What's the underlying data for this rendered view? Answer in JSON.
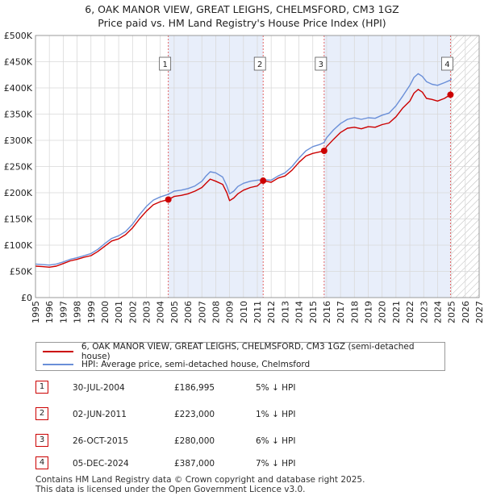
{
  "title_line1": "6, OAK MANOR VIEW, GREAT LEIGHS, CHELMSFORD, CM3 1GZ",
  "title_line2": "Price paid vs. HM Land Registry's House Price Index (HPI)",
  "colors": {
    "price": "#cc0000",
    "hpi": "#6a8fd8",
    "shade": "#e8eefa",
    "grid": "#d9d9d9",
    "vline": "#e05555"
  },
  "legend": {
    "price_label": "6, OAK MANOR VIEW, GREAT LEIGHS, CHELMSFORD, CM3 1GZ (semi-detached house)",
    "hpi_label": "HPI: Average price, semi-detached house, Chelmsford"
  },
  "sales": [
    {
      "num": "1",
      "date": "30-JUL-2004",
      "price": "£186,995",
      "hpi_rel": "5% ↓ HPI"
    },
    {
      "num": "2",
      "date": "02-JUN-2011",
      "price": "£223,000",
      "hpi_rel": "1% ↓ HPI"
    },
    {
      "num": "3",
      "date": "26-OCT-2015",
      "price": "£280,000",
      "hpi_rel": "6% ↓ HPI"
    },
    {
      "num": "4",
      "date": "05-DEC-2024",
      "price": "£387,000",
      "hpi_rel": "7% ↓ HPI"
    }
  ],
  "footer_line1": "Contains HM Land Registry data © Crown copyright and database right 2025.",
  "footer_line2": "This data is licensed under the Open Government Licence v3.0.",
  "chart_data": {
    "type": "line",
    "title": "6, OAK MANOR VIEW, GREAT LEIGHS, CHELMSFORD, CM3 1GZ — Price paid vs. HM Land Registry's House Price Index (HPI)",
    "xlabel": "",
    "ylabel": "",
    "xlim": [
      1995,
      2027
    ],
    "ylim": [
      0,
      500000
    ],
    "y_ticks": [
      0,
      50000,
      100000,
      150000,
      200000,
      250000,
      300000,
      350000,
      400000,
      450000,
      500000
    ],
    "y_tick_labels": [
      "£0",
      "£50K",
      "£100K",
      "£150K",
      "£200K",
      "£250K",
      "£300K",
      "£350K",
      "£400K",
      "£450K",
      "£500K"
    ],
    "x_ticks": [
      1995,
      1996,
      1997,
      1998,
      1999,
      2000,
      2001,
      2002,
      2003,
      2004,
      2005,
      2006,
      2007,
      2008,
      2009,
      2010,
      2011,
      2012,
      2013,
      2014,
      2015,
      2016,
      2017,
      2018,
      2019,
      2020,
      2021,
      2022,
      2023,
      2024,
      2025,
      2026,
      2027
    ],
    "x_tick_labels": [
      "1995",
      "1996",
      "1997",
      "1998",
      "1999",
      "2000",
      "2001",
      "2002",
      "2003",
      "2004",
      "2005",
      "2006",
      "2007",
      "2008",
      "2009",
      "2010",
      "2011",
      "2012",
      "2013",
      "2014",
      "2015",
      "2016",
      "2017",
      "2018",
      "2019",
      "2020",
      "2021",
      "2022",
      "2023",
      "2024",
      "2025",
      "2026",
      "2027"
    ],
    "grid": true,
    "shaded_ranges": [
      [
        2004.58,
        2011.42
      ],
      [
        2015.82,
        2024.93
      ]
    ],
    "hatched_range": [
      2025.0,
      2027
    ],
    "sale_markers": [
      {
        "label": "1",
        "x": 2004.58,
        "y": 186995
      },
      {
        "label": "2",
        "x": 2011.42,
        "y": 223000
      },
      {
        "label": "3",
        "x": 2015.82,
        "y": 280000
      },
      {
        "label": "4",
        "x": 2024.93,
        "y": 387000
      }
    ],
    "series": [
      {
        "name": "6, OAK MANOR VIEW, GREAT LEIGHS, CHELMSFORD, CM3 1GZ (semi-detached house)",
        "x": [
          1995,
          1995.5,
          1996,
          1996.5,
          1997,
          1997.5,
          1998,
          1998.5,
          1999,
          1999.5,
          2000,
          2000.5,
          2001,
          2001.5,
          2002,
          2002.5,
          2003,
          2003.5,
          2004,
          2004.58,
          2005,
          2005.5,
          2006,
          2006.5,
          2007,
          2007.3,
          2007.6,
          2008,
          2008.5,
          2008.8,
          2009,
          2009.3,
          2009.6,
          2010,
          2010.5,
          2011,
          2011.42,
          2012,
          2012.5,
          2013,
          2013.5,
          2014,
          2014.5,
          2015,
          2015.5,
          2015.82,
          2016,
          2016.5,
          2017,
          2017.5,
          2018,
          2018.5,
          2019,
          2019.5,
          2020,
          2020.5,
          2021,
          2021.5,
          2022,
          2022.3,
          2022.6,
          2022.9,
          2023.2,
          2023.6,
          2024,
          2024.5,
          2024.93
        ],
        "values": [
          60000,
          59000,
          58000,
          60000,
          65000,
          70000,
          73000,
          77000,
          80000,
          88000,
          98000,
          108000,
          112000,
          120000,
          133000,
          150000,
          165000,
          177000,
          183000,
          186995,
          193000,
          195000,
          198000,
          203000,
          210000,
          218000,
          226000,
          222000,
          216000,
          200000,
          185000,
          190000,
          198000,
          205000,
          210000,
          213000,
          223000,
          220000,
          228000,
          232000,
          243000,
          258000,
          270000,
          275000,
          278000,
          280000,
          288000,
          302000,
          315000,
          323000,
          325000,
          322000,
          326000,
          325000,
          330000,
          333000,
          345000,
          362000,
          375000,
          390000,
          397000,
          392000,
          380000,
          378000,
          375000,
          380000,
          387000
        ]
      },
      {
        "name": "HPI: Average price, semi-detached house, Chelmsford",
        "x": [
          1995,
          1995.5,
          1996,
          1996.5,
          1997,
          1997.5,
          1998,
          1998.5,
          1999,
          1999.5,
          2000,
          2000.5,
          2001,
          2001.5,
          2002,
          2002.5,
          2003,
          2003.5,
          2004,
          2004.58,
          2005,
          2005.5,
          2006,
          2006.5,
          2007,
          2007.3,
          2007.6,
          2008,
          2008.5,
          2008.8,
          2009,
          2009.3,
          2009.6,
          2010,
          2010.5,
          2011,
          2011.42,
          2012,
          2012.5,
          2013,
          2013.5,
          2014,
          2014.5,
          2015,
          2015.5,
          2015.82,
          2016,
          2016.5,
          2017,
          2017.5,
          2018,
          2018.5,
          2019,
          2019.5,
          2020,
          2020.5,
          2021,
          2021.5,
          2022,
          2022.3,
          2022.6,
          2022.9,
          2023.2,
          2023.6,
          2024,
          2024.5,
          2024.93,
          2025.0
        ],
        "values": [
          64000,
          63000,
          62000,
          64000,
          68000,
          73000,
          76000,
          80000,
          84000,
          92000,
          103000,
          113000,
          118000,
          126000,
          140000,
          158000,
          174000,
          186000,
          192000,
          197000,
          203000,
          205000,
          208000,
          213000,
          222000,
          232000,
          240000,
          238000,
          230000,
          213000,
          198000,
          203000,
          212000,
          218000,
          222000,
          224000,
          225000,
          224000,
          232000,
          238000,
          250000,
          266000,
          280000,
          288000,
          292000,
          296000,
          305000,
          320000,
          332000,
          340000,
          343000,
          340000,
          343000,
          342000,
          348000,
          352000,
          366000,
          385000,
          405000,
          420000,
          427000,
          422000,
          412000,
          407000,
          405000,
          410000,
          415000,
          418000
        ]
      }
    ]
  }
}
